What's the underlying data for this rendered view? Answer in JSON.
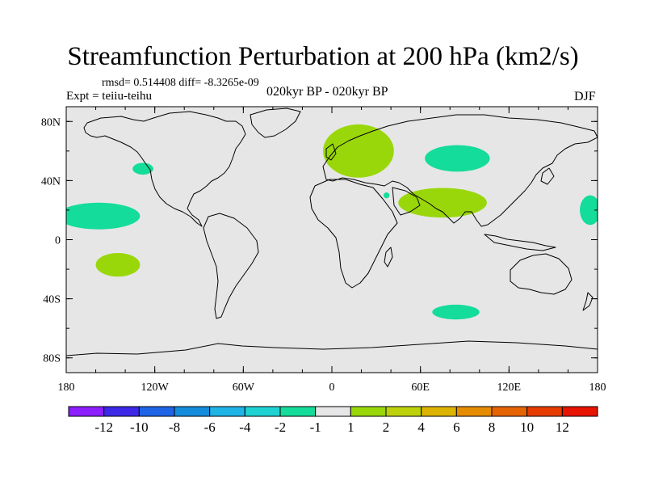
{
  "title": "Streamfunction Perturbation at 200 hPa (km2/s)",
  "stats_text": "rmsd= 0.514408 diff= -8.3265e-09",
  "experiment": "Expt = teiiu-teihu",
  "period": "020kyr BP - 020kyr BP",
  "season": "DJF",
  "chart_data": {
    "type": "contour-map",
    "projection": "cylindrical-equidistant",
    "variable": "streamfunction perturbation",
    "units": "km2/s",
    "level_hPa": 200,
    "lon_range": [
      -180,
      180
    ],
    "lat_range": [
      -90,
      90
    ],
    "x_ticks": [
      {
        "value": -180,
        "label": "180"
      },
      {
        "value": -120,
        "label": "120W"
      },
      {
        "value": -60,
        "label": "60W"
      },
      {
        "value": 0,
        "label": "0"
      },
      {
        "value": 60,
        "label": "60E"
      },
      {
        "value": 120,
        "label": "120E"
      },
      {
        "value": 180,
        "label": "180"
      }
    ],
    "y_ticks": [
      {
        "value": 80,
        "label": "80N"
      },
      {
        "value": 40,
        "label": "40N"
      },
      {
        "value": 0,
        "label": "0"
      },
      {
        "value": -40,
        "label": "40S"
      },
      {
        "value": -80,
        "label": "80S"
      }
    ],
    "background_color": "#e6e6e6",
    "levels": [
      -12,
      -10,
      -8,
      -6,
      -4,
      -2,
      -1,
      1,
      2,
      4,
      6,
      8,
      10,
      12
    ],
    "colors": [
      "#8c1eff",
      "#3c28e6",
      "#1e64e6",
      "#148cdc",
      "#1eb4e6",
      "#1ed2d2",
      "#14dc9a",
      "#e6e6e6",
      "#9ad70a",
      "#bed20a",
      "#dcb400",
      "#e68c00",
      "#e66400",
      "#e63c00",
      "#e61400"
    ],
    "regions": [
      {
        "name": "north-atlantic-europe",
        "bin": "1 to 2",
        "color": "#9ad70a",
        "center_lon": 18,
        "center_lat": 60,
        "radius_lon": 24,
        "radius_lat": 18
      },
      {
        "name": "central-asia",
        "bin": "-2 to -1",
        "color": "#14dc9a",
        "center_lon": 85,
        "center_lat": 55,
        "radius_lon": 22,
        "radius_lat": 9
      },
      {
        "name": "south-asia",
        "bin": "1 to 2",
        "color": "#9ad70a",
        "center_lon": 75,
        "center_lat": 25,
        "radius_lon": 30,
        "radius_lat": 10
      },
      {
        "name": "nw-america",
        "bin": "-2 to -1",
        "color": "#14dc9a",
        "center_lon": -128,
        "center_lat": 48,
        "radius_lon": 7,
        "radius_lat": 4
      },
      {
        "name": "central-pacific-north",
        "bin": "-2 to -1",
        "color": "#14dc9a",
        "center_lon": -158,
        "center_lat": 16,
        "radius_lon": 28,
        "radius_lat": 9
      },
      {
        "name": "west-pacific",
        "bin": "-2 to -1",
        "color": "#14dc9a",
        "center_lon": 175,
        "center_lat": 20,
        "radius_lon": 7,
        "radius_lat": 10
      },
      {
        "name": "south-pacific",
        "bin": "1 to 2",
        "color": "#9ad70a",
        "center_lon": -145,
        "center_lat": -17,
        "radius_lon": 15,
        "radius_lat": 8
      },
      {
        "name": "southern-indian-ocean",
        "bin": "-2 to -1",
        "color": "#14dc9a",
        "center_lon": 84,
        "center_lat": -49,
        "radius_lon": 16,
        "radius_lat": 5
      },
      {
        "name": "red-sea-small",
        "bin": "-2 to -1",
        "color": "#14dc9a",
        "center_lon": 37,
        "center_lat": 30,
        "radius_lon": 2,
        "radius_lat": 2
      }
    ],
    "colorbar": {
      "orientation": "horizontal",
      "labels": [
        "-12",
        "-10",
        "-8",
        "-6",
        "-4",
        "-2",
        "-1",
        "1",
        "2",
        "4",
        "6",
        "8",
        "10",
        "12"
      ]
    }
  }
}
